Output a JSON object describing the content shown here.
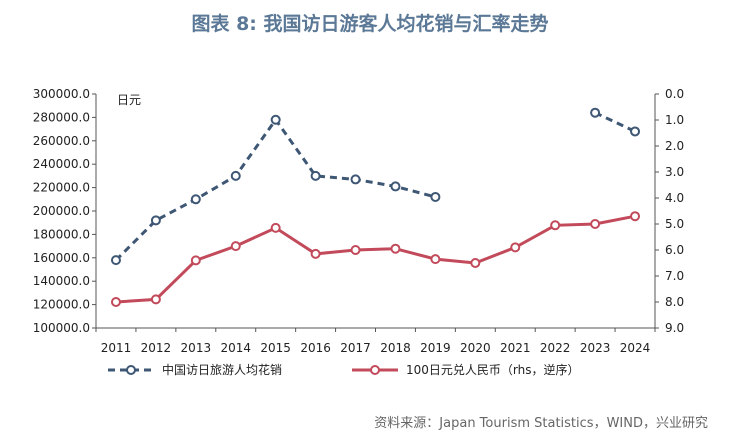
{
  "header": {
    "title": "图表 8:  我国访日游客人均花销与汇率走势"
  },
  "source": "资料来源：Japan Tourism Statistics，WIND，兴业研究",
  "chart_data": {
    "type": "line",
    "x": [
      "2011",
      "2012",
      "2013",
      "2014",
      "2015",
      "2016",
      "2017",
      "2018",
      "2019",
      "2020",
      "2021",
      "2022",
      "2023",
      "2024"
    ],
    "unit_label": "日元",
    "left_axis": {
      "min": 100000,
      "max": 300000,
      "step": 20000,
      "ticks": [
        "100000.0",
        "120000.0",
        "140000.0",
        "160000.0",
        "180000.0",
        "200000.0",
        "220000.0",
        "240000.0",
        "260000.0",
        "280000.0",
        "300000.0"
      ]
    },
    "right_axis": {
      "min": 0,
      "max": 9,
      "inverted": true,
      "ticks": [
        "0.0",
        "1.0",
        "2.0",
        "3.0",
        "4.0",
        "5.0",
        "6.0",
        "7.0",
        "8.0",
        "9.0"
      ]
    },
    "series": [
      {
        "name": "中国访日旅游人均花销",
        "axis": "left",
        "color": "#3e5774",
        "style": "dashed",
        "values": [
          158000,
          192000,
          210000,
          230000,
          278000,
          230000,
          227000,
          221000,
          212000,
          null,
          null,
          null,
          284000,
          268000
        ]
      },
      {
        "name": "100日元兑人民币（rhs，逆序）",
        "axis": "right",
        "color": "#c24a5a",
        "style": "solid",
        "values": [
          8.0,
          7.9,
          6.4,
          5.85,
          5.15,
          6.15,
          6.0,
          5.95,
          6.35,
          6.5,
          5.9,
          5.05,
          5.0,
          4.7
        ]
      }
    ],
    "legend_position": "bottom"
  }
}
